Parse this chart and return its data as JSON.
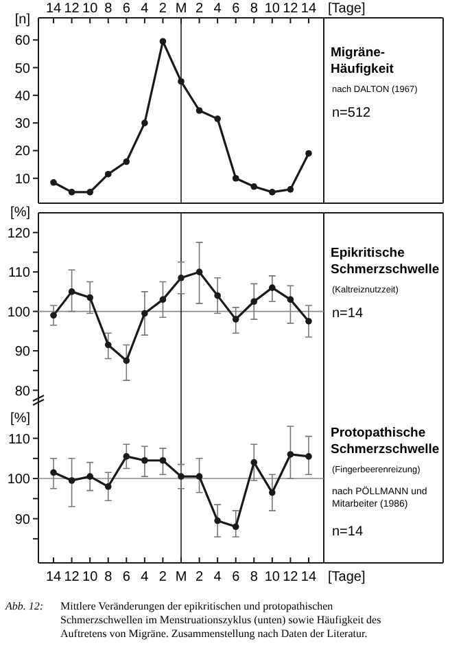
{
  "chart_data": [
    {
      "type": "line",
      "ylabel": "[n]",
      "xlabel": "[Tage]",
      "categories": [
        "14",
        "12",
        "10",
        "8",
        "6",
        "4",
        "2",
        "M",
        "2",
        "4",
        "6",
        "8",
        "10",
        "12",
        "14"
      ],
      "series": [
        {
          "color": "#1a1a1a",
          "values": [
            8.5,
            5,
            5,
            11.5,
            16,
            30,
            59.5,
            45,
            34.5,
            31.5,
            10,
            7,
            5,
            6,
            19
          ]
        }
      ],
      "ylim": [
        1,
        68
      ],
      "yticks": [
        10,
        20,
        30,
        40,
        50,
        60
      ],
      "marker": "circle",
      "line_style": "solid",
      "grid": false,
      "legend": false,
      "ref_lines": [
        {
          "axis": "x",
          "value": "M",
          "color": "#1a1a1a"
        }
      ],
      "annotations": [
        "Migräne-Häufigkeit",
        "nach DALTON (1967)",
        "n=512"
      ]
    },
    {
      "type": "line",
      "ylabel": "[%]",
      "categories": [
        "14",
        "12",
        "10",
        "8",
        "6",
        "4",
        "2",
        "M",
        "2",
        "4",
        "6",
        "8",
        "10",
        "12",
        "14"
      ],
      "series": [
        {
          "color": "#1a1a1a",
          "values": [
            99,
            105,
            103.5,
            91.5,
            87.5,
            99.5,
            103,
            108.5,
            110,
            104,
            98,
            102.5,
            106,
            103,
            97.5
          ],
          "errors": [
            [
              96.5,
              101.5
            ],
            [
              100,
              110.5
            ],
            [
              99.5,
              107.5
            ],
            [
              88,
              94.5
            ],
            [
              82.5,
              91.5
            ],
            [
              94,
              105
            ],
            [
              98.5,
              107.5
            ],
            [
              104.5,
              112.5
            ],
            [
              102,
              117.5
            ],
            [
              99.5,
              108.5
            ],
            [
              94.5,
              101
            ],
            [
              98,
              107
            ],
            [
              102.5,
              109
            ],
            [
              97,
              106.5
            ],
            [
              93.5,
              101.5
            ]
          ]
        }
      ],
      "ylim": [
        78,
        125
      ],
      "yticks": [
        80,
        {
          "value": 85,
          "label": null
        },
        90,
        {
          "value": 95,
          "label": null
        },
        100,
        {
          "value": 105,
          "label": null
        },
        110,
        {
          "value": 115,
          "label": null
        },
        120
      ],
      "tick_labels": "y",
      "marker": "circle",
      "line_style": "solid",
      "grid": false,
      "legend": false,
      "ref_lines": [
        {
          "axis": "y",
          "value": 100,
          "color": "#8c8c8c"
        },
        {
          "axis": "x",
          "value": "M",
          "color": "#1a1a1a"
        }
      ],
      "annotations": [
        "Epikritische Schmerzschwelle",
        "(Kaltreiznutzzeit)",
        "n=14"
      ]
    },
    {
      "type": "line",
      "ylabel": "[%]",
      "xlabel": "[Tage]",
      "categories": [
        "14",
        "12",
        "10",
        "8",
        "6",
        "4",
        "2",
        "M",
        "2",
        "4",
        "6",
        "8",
        "10",
        "12",
        "14"
      ],
      "series": [
        {
          "color": "#1a1a1a",
          "values": [
            101.5,
            99.5,
            100.5,
            98,
            105.5,
            104.5,
            104.5,
            100.5,
            100.5,
            89.5,
            88,
            104,
            96.5,
            106,
            105.5
          ],
          "errors": [
            [
              97.5,
              105
            ],
            [
              93,
              105
            ],
            [
              97,
              104
            ],
            [
              94.5,
              101.5
            ],
            [
              102.5,
              108.5
            ],
            [
              100.5,
              108
            ],
            [
              101,
              107.5
            ],
            [
              97.5,
              103.5
            ],
            [
              96.5,
              105
            ],
            [
              85.5,
              93.5
            ],
            [
              85.5,
              92
            ],
            [
              99.5,
              108.5
            ],
            [
              92,
              101
            ],
            [
              100,
              113
            ],
            [
              101,
              110.5
            ]
          ]
        }
      ],
      "ylim": [
        79,
        120
      ],
      "yticks": [
        {
          "value": 85,
          "label": null
        },
        90,
        {
          "value": 95,
          "label": null
        },
        100,
        {
          "value": 105,
          "label": null
        },
        110
      ],
      "marker": "circle",
      "line_style": "solid",
      "grid": false,
      "legend": false,
      "ref_lines": [
        {
          "axis": "y",
          "value": 100,
          "color": "#8c8c8c"
        },
        {
          "axis": "x",
          "value": "M",
          "color": "#1a1a1a"
        }
      ],
      "annotations": [
        "Protopathische Schmerzschwelle",
        "(Fingerbeerenreizung)",
        "nach PÖLLMANN und Mitarbeiter (1986)",
        "n=14",
        "Abb. 12: Mittlere Veränderungen der epikritischen und protopathischen Schmerzschwellen im Menstruationszyklus (unten) sowie Häufigkeit des Auftretens von Migräne. Zusammenstellung nach Daten der Literatur."
      ]
    }
  ]
}
